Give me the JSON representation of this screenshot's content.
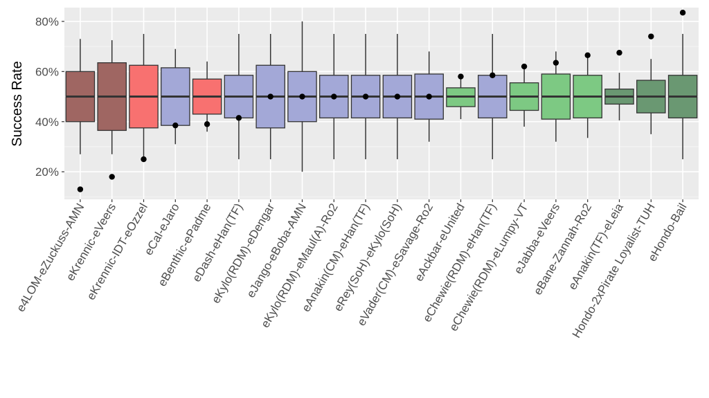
{
  "chart_data": {
    "type": "boxplot",
    "title": "",
    "xlabel": "",
    "ylabel": "Success Rate",
    "ylim": [
      0.09,
      0.855
    ],
    "y_ticks": [
      {
        "value": 0.2,
        "label": "20%"
      },
      {
        "value": 0.4,
        "label": "40%"
      },
      {
        "value": 0.6,
        "label": "60%"
      },
      {
        "value": 0.8,
        "label": "80%"
      }
    ],
    "grid": true,
    "legend": "none",
    "panel_background": "#ebebeb",
    "categories": [
      {
        "label": "e4LOM-eZuckuss-AMN",
        "group_color": "#9f6662",
        "whisker_low": 0.27,
        "q1": 0.4,
        "median": 0.5,
        "q3": 0.6,
        "whisker_high": 0.73,
        "point": 0.13
      },
      {
        "label": "eKrennic-eVeers",
        "group_color": "#9f6662",
        "whisker_low": 0.27,
        "q1": 0.365,
        "median": 0.5,
        "q3": 0.635,
        "whisker_high": 0.725,
        "point": 0.18
      },
      {
        "label": "eKrennic-IDT-eOzzel",
        "group_color": "#f87170",
        "whisker_low": 0.25,
        "q1": 0.375,
        "median": 0.5,
        "q3": 0.625,
        "whisker_high": 0.75,
        "point": 0.25
      },
      {
        "label": "eCal-eJaro",
        "group_color": "#a3a8d7",
        "whisker_low": 0.31,
        "q1": 0.385,
        "median": 0.5,
        "q3": 0.615,
        "whisker_high": 0.69,
        "point": 0.385
      },
      {
        "label": "eBenthic-ePadme",
        "group_color": "#f87170",
        "whisker_low": 0.36,
        "q1": 0.43,
        "median": 0.5,
        "q3": 0.57,
        "whisker_high": 0.64,
        "point": 0.39
      },
      {
        "label": "eDash-eHan(TF)",
        "group_color": "#a3a8d7",
        "whisker_low": 0.25,
        "q1": 0.415,
        "median": 0.5,
        "q3": 0.585,
        "whisker_high": 0.75,
        "point": 0.415
      },
      {
        "label": "eKylo(RDM)-eDengar",
        "group_color": "#a3a8d7",
        "whisker_low": 0.25,
        "q1": 0.375,
        "median": 0.5,
        "q3": 0.625,
        "whisker_high": 0.75,
        "point": 0.5
      },
      {
        "label": "eJango-eBoba-AMN",
        "group_color": "#a3a8d7",
        "whisker_low": 0.2,
        "q1": 0.4,
        "median": 0.5,
        "q3": 0.6,
        "whisker_high": 0.8,
        "point": 0.5
      },
      {
        "label": "eKylo(RDM)-eMaul(A)-Ro2",
        "group_color": "#a3a8d7",
        "whisker_low": 0.25,
        "q1": 0.415,
        "median": 0.5,
        "q3": 0.585,
        "whisker_high": 0.75,
        "point": 0.5
      },
      {
        "label": "eAnakin(CM)-eHan(TF)",
        "group_color": "#a3a8d7",
        "whisker_low": 0.25,
        "q1": 0.415,
        "median": 0.5,
        "q3": 0.585,
        "whisker_high": 0.75,
        "point": 0.5
      },
      {
        "label": "eRey(SoH)-eKylo(SoH)",
        "group_color": "#a3a8d7",
        "whisker_low": 0.25,
        "q1": 0.415,
        "median": 0.5,
        "q3": 0.585,
        "whisker_high": 0.75,
        "point": 0.5
      },
      {
        "label": "eVader(CM)-eSavage-Ro2",
        "group_color": "#a3a8d7",
        "whisker_low": 0.32,
        "q1": 0.41,
        "median": 0.5,
        "q3": 0.59,
        "whisker_high": 0.68,
        "point": 0.5
      },
      {
        "label": "eAckbar-eUnited",
        "group_color": "#7dc983",
        "whisker_low": 0.41,
        "q1": 0.46,
        "median": 0.5,
        "q3": 0.535,
        "whisker_high": 0.58,
        "point": 0.58
      },
      {
        "label": "eChewie(RDM)-eHan(TF)",
        "group_color": "#a3a8d7",
        "whisker_low": 0.25,
        "q1": 0.415,
        "median": 0.5,
        "q3": 0.585,
        "whisker_high": 0.75,
        "point": 0.585
      },
      {
        "label": "eChewie(RDM)-eLumpy-VT",
        "group_color": "#7dc983",
        "whisker_low": 0.38,
        "q1": 0.445,
        "median": 0.5,
        "q3": 0.555,
        "whisker_high": 0.62,
        "point": 0.62
      },
      {
        "label": "eJabba-eVeers",
        "group_color": "#7dc983",
        "whisker_low": 0.32,
        "q1": 0.41,
        "median": 0.5,
        "q3": 0.59,
        "whisker_high": 0.68,
        "point": 0.635
      },
      {
        "label": "eBane-Zannah-Ro2",
        "group_color": "#7dc983",
        "whisker_low": 0.335,
        "q1": 0.415,
        "median": 0.5,
        "q3": 0.585,
        "whisker_high": 0.665,
        "point": 0.665
      },
      {
        "label": "eAnakin(TF)-eLeia",
        "group_color": "#6a9872",
        "whisker_low": 0.405,
        "q1": 0.47,
        "median": 0.5,
        "q3": 0.53,
        "whisker_high": 0.595,
        "point": 0.675
      },
      {
        "label": "Hondo-2xPirate Loyalist-TUH",
        "group_color": "#6a9872",
        "whisker_low": 0.35,
        "q1": 0.435,
        "median": 0.5,
        "q3": 0.565,
        "whisker_high": 0.65,
        "point": 0.74
      },
      {
        "label": "eHondo-Bail",
        "group_color": "#6a9872",
        "whisker_low": 0.25,
        "q1": 0.415,
        "median": 0.5,
        "q3": 0.585,
        "whisker_high": 0.75,
        "point": 0.835
      }
    ]
  }
}
